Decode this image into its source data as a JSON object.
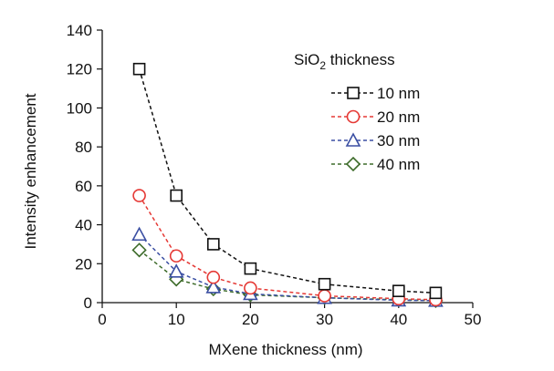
{
  "chart_data": {
    "type": "scatter",
    "title": "",
    "xlabel": "MXene thickness (nm)",
    "ylabel": "Intensity enhancement",
    "xlim": [
      0,
      50
    ],
    "ylim": [
      0,
      140
    ],
    "xticks": [
      0,
      10,
      20,
      30,
      40,
      50
    ],
    "yticks": [
      0,
      20,
      40,
      60,
      80,
      100,
      120,
      140
    ],
    "grid": false,
    "legend_position": "top-right",
    "legend_title_prefix": "SiO",
    "legend_title_subscript": "2",
    "legend_title_suffix": " thickness",
    "x": [
      5,
      10,
      15,
      20,
      30,
      40,
      45
    ],
    "series": [
      {
        "name": "10 nm",
        "marker": "square",
        "color": "#111111",
        "values": [
          120,
          55,
          30,
          17.5,
          9.5,
          6,
          5
        ]
      },
      {
        "name": "20 nm",
        "marker": "circle",
        "color": "#e53935",
        "values": [
          55,
          24,
          13,
          7.5,
          3.5,
          2,
          1.5
        ]
      },
      {
        "name": "30 nm",
        "marker": "triangle",
        "color": "#3b4fa3",
        "values": [
          35,
          16,
          8,
          4.5,
          2.5,
          1.2,
          1
        ]
      },
      {
        "name": "40 nm",
        "marker": "diamond",
        "color": "#3d6b2a",
        "values": [
          27,
          12,
          7,
          4,
          2.5,
          1.5,
          1
        ]
      }
    ]
  }
}
